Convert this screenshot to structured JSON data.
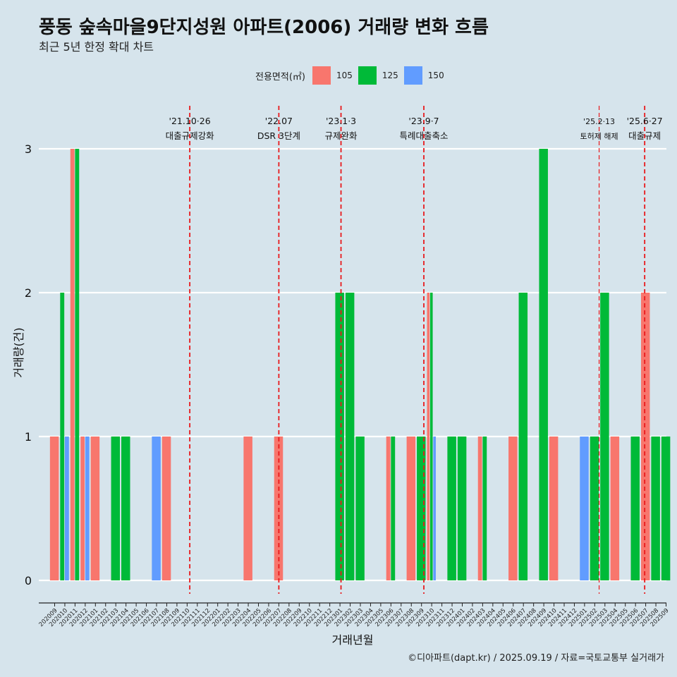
{
  "chart_data": {
    "type": "bar",
    "title": "풍동 숲속마을9단지성원 아파트(2006) 거래량 변화 흐름",
    "subtitle": "최근 5년 한정 확대 차트",
    "xlabel": "거래년월",
    "ylabel": "거래량(건)",
    "ylim": [
      0,
      3
    ],
    "yticks": [
      0,
      1,
      2,
      3
    ],
    "legend": {
      "title": "전용면적(㎡)",
      "placement": "top",
      "items": [
        {
          "name": "105",
          "color": "#f8766d"
        },
        {
          "name": "125",
          "color": "#00ba38"
        },
        {
          "name": "150",
          "color": "#619cff"
        }
      ]
    },
    "categories": [
      "202009",
      "202010",
      "202011",
      "202012",
      "202101",
      "202102",
      "202103",
      "202104",
      "202105",
      "202106",
      "202107",
      "202108",
      "202109",
      "202110",
      "202111",
      "202112",
      "202201",
      "202202",
      "202203",
      "202204",
      "202205",
      "202206",
      "202207",
      "202208",
      "202209",
      "202210",
      "202211",
      "202212",
      "202301",
      "202302",
      "202303",
      "202304",
      "202305",
      "202306",
      "202307",
      "202308",
      "202309",
      "202310",
      "202311",
      "202312",
      "202401",
      "202402",
      "202403",
      "202404",
      "202405",
      "202406",
      "202407",
      "202408",
      "202409",
      "202410",
      "202411",
      "202412",
      "202501",
      "202502",
      "202503",
      "202504",
      "202505",
      "202506",
      "202507",
      "202508",
      "202509"
    ],
    "series": [
      {
        "name": "105",
        "values": [
          1,
          0,
          3,
          1,
          1,
          0,
          0,
          0,
          0,
          0,
          0,
          1,
          0,
          0,
          0,
          0,
          0,
          0,
          0,
          1,
          0,
          0,
          1,
          0,
          0,
          0,
          0,
          0,
          0,
          0,
          0,
          0,
          0,
          1,
          0,
          1,
          0,
          2,
          0,
          0,
          0,
          0,
          1,
          0,
          0,
          1,
          0,
          0,
          0,
          1,
          0,
          0,
          0,
          0,
          0,
          1,
          0,
          0,
          2,
          0,
          0
        ]
      },
      {
        "name": "125",
        "values": [
          0,
          2,
          3,
          0,
          0,
          0,
          1,
          1,
          0,
          0,
          0,
          0,
          0,
          0,
          0,
          0,
          0,
          0,
          0,
          0,
          0,
          0,
          0,
          0,
          0,
          0,
          0,
          0,
          2,
          2,
          1,
          0,
          0,
          1,
          0,
          0,
          1,
          2,
          0,
          1,
          1,
          0,
          1,
          0,
          0,
          0,
          2,
          0,
          3,
          0,
          0,
          0,
          0,
          1,
          2,
          0,
          0,
          1,
          0,
          1,
          1
        ]
      },
      {
        "name": "150",
        "values": [
          0,
          1,
          0,
          1,
          0,
          0,
          0,
          0,
          0,
          0,
          1,
          0,
          0,
          0,
          0,
          0,
          0,
          0,
          0,
          0,
          0,
          0,
          0,
          0,
          0,
          0,
          0,
          0,
          0,
          0,
          0,
          0,
          0,
          0,
          0,
          0,
          0,
          1,
          0,
          0,
          0,
          0,
          0,
          0,
          0,
          0,
          0,
          0,
          0,
          0,
          0,
          0,
          1,
          0,
          0,
          0,
          0,
          0,
          0,
          0,
          0
        ]
      }
    ],
    "annotations": [
      {
        "after": "202110",
        "frac": 0.26,
        "date": "'21.10·26",
        "label": "대출규제강화"
      },
      {
        "after": "202207",
        "frac": 0.0,
        "date": "'22.07",
        "label": "DSR 3단계"
      },
      {
        "after": "202301",
        "frac": 0.1,
        "date": "'23.1·3",
        "label": "규제완화"
      },
      {
        "after": "202309",
        "frac": 0.23,
        "date": "'23.9·7",
        "label": "특례대출축소"
      },
      {
        "after": "202502",
        "frac": 0.43,
        "date": "'25.2·13",
        "label": "토허제 해제",
        "small": true
      },
      {
        "after": "202506",
        "frac": 0.9,
        "date": "'25.6·27",
        "label": "대출규제"
      }
    ],
    "grid": true
  },
  "footer": "©디아파트(dapt.kr) / 2025.09.19 / 자료=국토교통부 실거래가"
}
